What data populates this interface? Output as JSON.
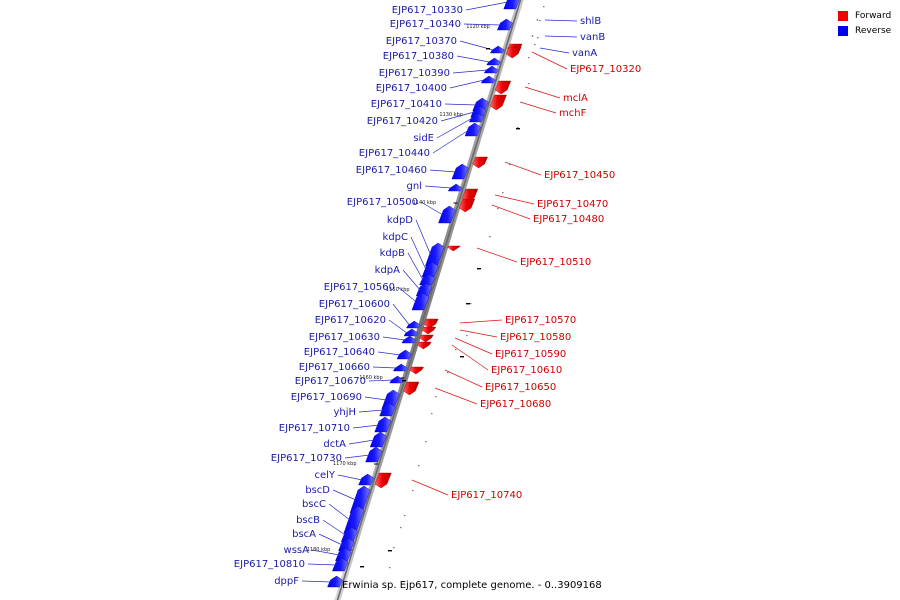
{
  "legend": {
    "forward": {
      "label": "Forward",
      "color": "#ee0000"
    },
    "reverse": {
      "label": "Reverse",
      "color": "#0000ee"
    }
  },
  "caption": "Erwinia sp. Ejp617, complete genome. - 0..3909168",
  "ticks": [
    "1120 kbp",
    "1130 kbp",
    "1140 kbp",
    "1150 kbp",
    "1160 kbp",
    "1170 kbp",
    "1180 kbp"
  ],
  "reverse_genes": [
    "EJP617_10330",
    "EJP617_10340",
    "EJP617_10370",
    "EJP617_10380",
    "EJP617_10390",
    "EJP617_10400",
    "EJP617_10410",
    "EJP617_10420",
    "sidE",
    "EJP617_10440",
    "EJP617_10460",
    "gnl",
    "EJP617_10500",
    "kdpD",
    "kdpC",
    "kdpB",
    "kdpA",
    "EJP617_10560",
    "EJP617_10600",
    "EJP617_10620",
    "EJP617_10630",
    "EJP617_10640",
    "EJP617_10660",
    "EJP617_10670",
    "EJP617_10690",
    "yhjH",
    "EJP617_10710",
    "dctA",
    "EJP617_10730",
    "celY",
    "bscD",
    "bscC",
    "bscB",
    "bscA",
    "wssA",
    "EJP617_10810",
    "dppF"
  ],
  "forward_genes": [
    "shlB",
    "vanB",
    "vanA",
    "EJP617_10320",
    "mclA",
    "mchF",
    "EJP617_10450",
    "EJP617_10470",
    "EJP617_10480",
    "EJP617_10510",
    "EJP617_10570",
    "EJP617_10580",
    "EJP617_10590",
    "EJP617_10610",
    "EJP617_10650",
    "EJP617_10680",
    "EJP617_10740"
  ]
}
